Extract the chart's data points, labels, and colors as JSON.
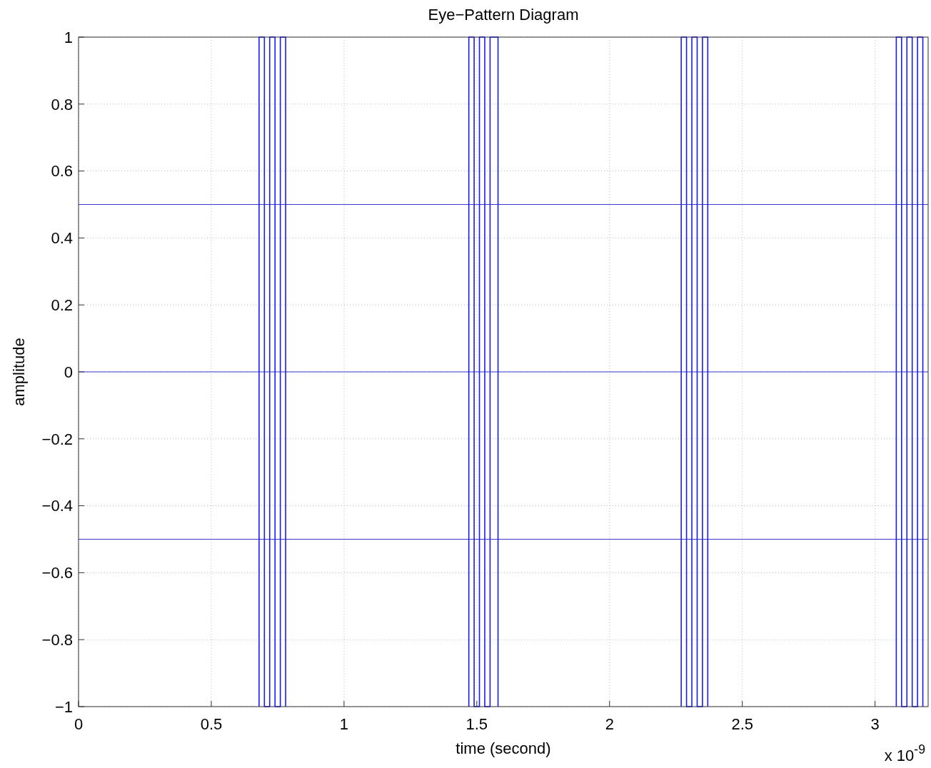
{
  "chart_data": {
    "type": "line",
    "title": "Eye−Pattern Diagram",
    "xlabel": "time (second)",
    "ylabel": "amplitude",
    "annotations": [
      "x 10$^{-9}$"
    ],
    "xlim": [
      0,
      3.2
    ],
    "xticks": [
      0,
      0.5,
      1,
      1.5,
      2,
      2.5,
      3
    ],
    "ylim": [
      -1,
      1
    ],
    "yticks": [
      {
        "value": -1,
        "label": "−1"
      },
      {
        "value": -0.8,
        "label": "−0.8"
      },
      {
        "value": -0.6,
        "label": "−0.6"
      },
      {
        "value": -0.4,
        "label": "−0.4"
      },
      {
        "value": -0.2,
        "label": "−0.2"
      },
      0,
      0.2,
      0.4,
      0.6,
      0.8,
      1
    ],
    "grid": true,
    "line_style": "solid",
    "marker": "none",
    "ref_lines": [
      {
        "axis": "y",
        "value": 0.5,
        "color": "#3a3ad0"
      },
      {
        "axis": "y",
        "value": 0,
        "color": "#3a3ad0"
      },
      {
        "axis": "y",
        "value": -0.5,
        "color": "#3a3ad0"
      }
    ],
    "series": [
      {
        "color": "#1a1aff",
        "x": [
          0.68,
          0.68,
          0.7,
          0.7,
          0.72,
          0.72,
          0.74,
          0.74,
          0.76,
          0.76,
          0.78,
          0.78
        ],
        "values": [
          -1,
          1,
          1,
          -1,
          -1,
          1,
          1,
          -1,
          -1,
          1,
          1,
          -1
        ]
      },
      {
        "color": "#1a1aff",
        "x": [
          1.47,
          1.47,
          1.49,
          1.49,
          1.51,
          1.51,
          1.53,
          1.53,
          1.55,
          1.55,
          1.58,
          1.58
        ],
        "values": [
          -1,
          1,
          1,
          -1,
          -1,
          1,
          1,
          -1,
          -1,
          1,
          1,
          -1
        ]
      },
      {
        "color": "#1a1aff",
        "x": [
          2.27,
          2.27,
          2.29,
          2.29,
          2.31,
          2.31,
          2.33,
          2.33,
          2.35,
          2.35,
          2.37,
          2.37
        ],
        "values": [
          -1,
          1,
          1,
          -1,
          -1,
          1,
          1,
          -1,
          -1,
          1,
          1,
          -1
        ]
      },
      {
        "color": "#1a1aff",
        "x": [
          3.08,
          3.08,
          3.1,
          3.1,
          3.12,
          3.12,
          3.14,
          3.14,
          3.16,
          3.16,
          3.18,
          3.18
        ],
        "values": [
          -1,
          1,
          1,
          -1,
          -1,
          1,
          1,
          -1,
          -1,
          1,
          1,
          -1
        ]
      }
    ]
  }
}
